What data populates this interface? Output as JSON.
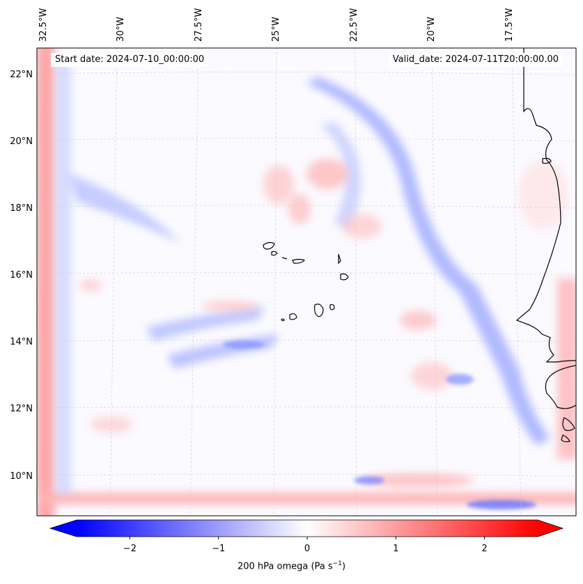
{
  "map": {
    "start_date_text": "Start date: 2024-07-10_00:00:00",
    "valid_date_text": "Valid_date: 2024-07-11T20:00:00.00",
    "longitude_labels": [
      "32.5°W",
      "30°W",
      "27.5°W",
      "25°W",
      "22.5°W",
      "20°W",
      "17.5°W"
    ],
    "latitude_labels": [
      "22°N",
      "20°N",
      "18°N",
      "16°N",
      "14°N",
      "12°N",
      "10°N"
    ],
    "field": "200 hPa omega",
    "coastline_color": "#000000"
  },
  "colorbar": {
    "label_prefix": "200 hPa omega (Pa s",
    "label_exponent": "−1",
    "label_suffix": ")",
    "ticks": [
      "−2",
      "−1",
      "0",
      "1",
      "2"
    ],
    "tick_values": [
      -2,
      -1,
      0,
      1,
      2
    ],
    "range": [
      -2.6,
      2.6
    ],
    "colormap": "bwr",
    "low_color": "#0000ff",
    "mid_color": "#ffffff",
    "high_color": "#ff0000",
    "extend": "both"
  }
}
